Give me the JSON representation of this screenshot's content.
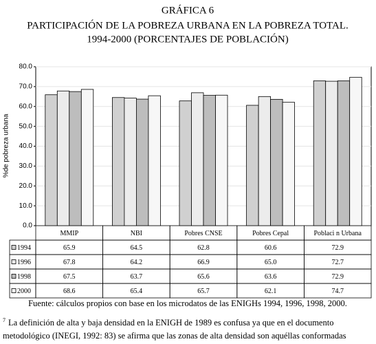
{
  "header": {
    "title": "GRÁFICA 6",
    "subtitle_lines": [
      "PARTICIPACIÓN DE LA POBREZA URBANA EN LA POBREZA TOTAL.",
      "1994-2000 (PORCENTAJES DE POBLACIÓN)"
    ]
  },
  "chart_data": {
    "type": "bar",
    "y_label": "%de pobreza urbana",
    "categories": [
      "MMIP",
      "NBI",
      "Pobres CNSE",
      "Pobres Cepal",
      "Poblaci n Urbana"
    ],
    "series": [
      {
        "name": "1994",
        "color": "#d0d0d0",
        "values": [
          65.9,
          64.5,
          62.8,
          60.6,
          72.9
        ],
        "value_labels": [
          "65.9",
          "64.5",
          "62.8",
          "60.6",
          "72.9"
        ]
      },
      {
        "name": "1996",
        "color": "#ececec",
        "values": [
          67.8,
          64.2,
          66.9,
          65.0,
          72.7
        ],
        "value_labels": [
          "67.8",
          "64.2",
          "66.9",
          "65.0",
          "72.7"
        ]
      },
      {
        "name": "1998",
        "color": "#bdbdbd",
        "values": [
          67.5,
          63.7,
          65.6,
          63.6,
          72.9
        ],
        "value_labels": [
          "67.5",
          "63.7",
          "65.6",
          "63.6",
          "72.9"
        ]
      },
      {
        "name": "2000",
        "color": "#f7f7f7",
        "values": [
          68.6,
          65.4,
          65.7,
          62.1,
          74.7
        ],
        "value_labels": [
          "68.6",
          "65.4",
          "65.7",
          "62.1",
          "74.7"
        ]
      }
    ],
    "ylim": [
      0,
      80
    ],
    "yticks": [
      {
        "value": 0,
        "label": "0.0"
      },
      {
        "value": 10,
        "label": "10.0"
      },
      {
        "value": 20,
        "label": "20.0"
      },
      {
        "value": 30,
        "label": "30.0"
      },
      {
        "value": 40,
        "label": "40.0"
      },
      {
        "value": 50,
        "label": "50.0"
      },
      {
        "value": 60,
        "label": "60.0"
      },
      {
        "value": 70,
        "label": "70.0"
      },
      {
        "value": 80,
        "label": "80.0"
      }
    ],
    "grid": true
  },
  "source": "Fuente: cálculos propios con base en los microdatos de las ENIGHs 1994, 1996, 1998, 2000.",
  "footnote": {
    "marker": "7",
    "lines": [
      "La definición de alta y baja densidad en la ENIGH de 1989 es confusa ya que en el documento",
      "metodológico (INEGI, 1992: 83) se afirma que las zonas de alta densidad son aquéllas conformadas"
    ]
  }
}
